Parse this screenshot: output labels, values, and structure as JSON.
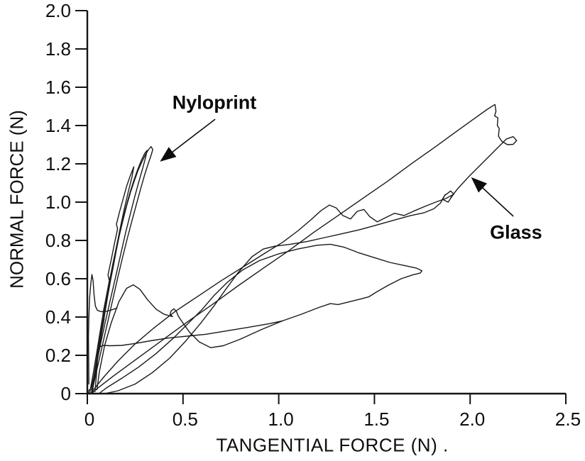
{
  "figure": {
    "background": "#ffffff",
    "ink_color": "#141414"
  },
  "chart_data": {
    "type": "line",
    "title": "",
    "xlabel": "TANGENTIAL FORCE (N) .",
    "ylabel": "NORMAL FORCE (N)",
    "xlim": [
      0,
      2.5
    ],
    "ylim": [
      0,
      2.0
    ],
    "grid": false,
    "legend_position": "none (arrow annotations instead)",
    "line_color": "#1a1a1a",
    "x_tick_values": [
      0,
      0.5,
      1.0,
      1.5,
      2.0,
      2.5
    ],
    "x_tick_labels": [
      "0",
      "0.5",
      "1.0",
      "1.5",
      "2.0",
      "2.5"
    ],
    "y_tick_values": [
      0,
      0.2,
      0.4,
      0.6,
      0.8,
      1.0,
      1.2,
      1.4,
      1.6,
      1.8,
      2.0
    ],
    "y_tick_labels": [
      "0",
      "0.2",
      "0.4",
      "0.6",
      "0.8",
      "1.0",
      "1.2",
      "1.4",
      "1.6",
      "1.8",
      "2.0"
    ],
    "annotations": [
      {
        "text": "Nyloprint",
        "label_xy": [
          0.664,
          1.519
        ],
        "arrow_from": [
          0.668,
          1.433
        ],
        "arrow_to": [
          0.389,
          1.219
        ]
      },
      {
        "text": "Glass",
        "label_xy": [
          2.24,
          0.84
        ],
        "arrow_from": [
          2.226,
          0.926
        ],
        "arrow_to": [
          2.014,
          1.122
        ]
      }
    ],
    "series": [
      {
        "name": "nyloprint-trace-1",
        "surface": "Nyloprint",
        "points": [
          [
            0.02,
            0.0
          ],
          [
            0.035,
            0.07
          ],
          [
            0.05,
            0.17
          ],
          [
            0.065,
            0.26
          ],
          [
            0.08,
            0.35
          ],
          [
            0.095,
            0.44
          ],
          [
            0.105,
            0.5
          ],
          [
            0.12,
            0.585
          ],
          [
            0.135,
            0.66
          ],
          [
            0.15,
            0.74
          ],
          [
            0.168,
            0.83
          ],
          [
            0.185,
            0.9
          ],
          [
            0.205,
            0.98
          ],
          [
            0.225,
            1.05
          ],
          [
            0.245,
            1.11
          ],
          [
            0.265,
            1.165
          ],
          [
            0.285,
            1.21
          ],
          [
            0.305,
            1.25
          ],
          [
            0.32,
            1.275
          ],
          [
            0.333,
            1.29
          ],
          [
            0.342,
            1.275
          ],
          [
            0.335,
            1.25
          ],
          [
            0.318,
            1.2
          ],
          [
            0.3,
            1.145
          ],
          [
            0.28,
            1.075
          ],
          [
            0.258,
            0.995
          ],
          [
            0.235,
            0.91
          ],
          [
            0.21,
            0.815
          ],
          [
            0.185,
            0.715
          ],
          [
            0.16,
            0.61
          ],
          [
            0.135,
            0.5
          ],
          [
            0.11,
            0.39
          ],
          [
            0.085,
            0.28
          ],
          [
            0.06,
            0.17
          ],
          [
            0.04,
            0.08
          ],
          [
            0.025,
            0.015
          ]
        ]
      },
      {
        "name": "nyloprint-trace-2",
        "surface": "Nyloprint",
        "points": [
          [
            0.012,
            0.0
          ],
          [
            0.03,
            0.1
          ],
          [
            0.05,
            0.22
          ],
          [
            0.068,
            0.33
          ],
          [
            0.085,
            0.43
          ],
          [
            0.1,
            0.51
          ],
          [
            0.118,
            0.6
          ],
          [
            0.138,
            0.7
          ],
          [
            0.158,
            0.79
          ],
          [
            0.178,
            0.88
          ],
          [
            0.198,
            0.96
          ],
          [
            0.22,
            1.04
          ],
          [
            0.242,
            1.11
          ],
          [
            0.263,
            1.17
          ],
          [
            0.283,
            1.22
          ],
          [
            0.3,
            1.255
          ],
          [
            0.312,
            1.27
          ],
          [
            0.305,
            1.235
          ],
          [
            0.29,
            1.18
          ],
          [
            0.27,
            1.11
          ],
          [
            0.248,
            1.03
          ],
          [
            0.225,
            0.94
          ],
          [
            0.2,
            0.84
          ],
          [
            0.175,
            0.73
          ],
          [
            0.148,
            0.61
          ],
          [
            0.12,
            0.49
          ],
          [
            0.093,
            0.37
          ],
          [
            0.067,
            0.25
          ],
          [
            0.043,
            0.13
          ],
          [
            0.022,
            0.03
          ]
        ]
      },
      {
        "name": "nyloprint-trace-3",
        "surface": "Nyloprint",
        "points": [
          [
            0.025,
            0.005
          ],
          [
            0.045,
            0.12
          ],
          [
            0.062,
            0.235
          ],
          [
            0.072,
            0.3
          ],
          [
            0.088,
            0.39
          ],
          [
            0.082,
            0.42
          ],
          [
            0.098,
            0.5
          ],
          [
            0.115,
            0.59
          ],
          [
            0.108,
            0.62
          ],
          [
            0.125,
            0.7
          ],
          [
            0.142,
            0.785
          ],
          [
            0.158,
            0.86
          ],
          [
            0.152,
            0.885
          ],
          [
            0.17,
            0.955
          ],
          [
            0.188,
            1.02
          ],
          [
            0.206,
            1.085
          ],
          [
            0.225,
            1.14
          ],
          [
            0.243,
            1.185
          ],
          [
            0.233,
            1.13
          ],
          [
            0.213,
            1.05
          ],
          [
            0.192,
            0.96
          ],
          [
            0.172,
            0.865
          ],
          [
            0.15,
            0.755
          ],
          [
            0.128,
            0.64
          ],
          [
            0.106,
            0.52
          ],
          [
            0.085,
            0.4
          ],
          [
            0.065,
            0.285
          ],
          [
            0.047,
            0.17
          ],
          [
            0.03,
            0.06
          ]
        ]
      },
      {
        "name": "glass-outer-loop",
        "surface": "Glass",
        "points": [
          [
            0.03,
            0.01
          ],
          [
            0.14,
            0.095
          ],
          [
            0.27,
            0.19
          ],
          [
            0.4,
            0.285
          ],
          [
            0.53,
            0.38
          ],
          [
            0.66,
            0.47
          ],
          [
            0.79,
            0.565
          ],
          [
            0.92,
            0.655
          ],
          [
            1.05,
            0.745
          ],
          [
            1.18,
            0.84
          ],
          [
            1.31,
            0.93
          ],
          [
            1.44,
            1.02
          ],
          [
            1.57,
            1.11
          ],
          [
            1.7,
            1.205
          ],
          [
            1.82,
            1.29
          ],
          [
            1.93,
            1.37
          ],
          [
            2.02,
            1.435
          ],
          [
            2.09,
            1.485
          ],
          [
            2.13,
            1.51
          ],
          [
            2.135,
            1.475
          ],
          [
            2.128,
            1.45
          ],
          [
            2.145,
            1.44
          ],
          [
            2.142,
            1.4
          ],
          [
            2.152,
            1.385
          ],
          [
            2.148,
            1.345
          ],
          [
            2.165,
            1.318
          ],
          [
            2.195,
            1.3
          ],
          [
            2.225,
            1.302
          ],
          [
            2.243,
            1.322
          ],
          [
            2.225,
            1.342
          ],
          [
            2.19,
            1.33
          ],
          [
            2.13,
            1.27
          ],
          [
            2.06,
            1.2
          ],
          [
            1.99,
            1.13
          ],
          [
            1.935,
            1.07
          ],
          [
            1.9,
            1.025
          ],
          [
            1.915,
            1.045
          ],
          [
            1.885,
            1.0
          ],
          [
            1.855,
            1.015
          ],
          [
            1.87,
            1.04
          ],
          [
            1.845,
            0.995
          ],
          [
            1.81,
            0.965
          ],
          [
            1.76,
            0.945
          ],
          [
            1.69,
            0.93
          ],
          [
            1.6,
            0.905
          ],
          [
            1.51,
            0.88
          ],
          [
            1.42,
            0.855
          ],
          [
            1.33,
            0.835
          ],
          [
            1.24,
            0.815
          ],
          [
            1.15,
            0.795
          ],
          [
            1.06,
            0.78
          ],
          [
            0.98,
            0.77
          ],
          [
            0.92,
            0.755
          ],
          [
            0.86,
            0.715
          ],
          [
            0.79,
            0.635
          ],
          [
            0.72,
            0.54
          ],
          [
            0.66,
            0.455
          ],
          [
            0.59,
            0.365
          ],
          [
            0.51,
            0.27
          ],
          [
            0.43,
            0.185
          ],
          [
            0.34,
            0.11
          ],
          [
            0.25,
            0.05
          ],
          [
            0.16,
            0.015
          ],
          [
            0.09,
            0.0
          ]
        ]
      },
      {
        "name": "glass-wiggly-trace",
        "surface": "Glass",
        "points": [
          [
            0.02,
            0.005
          ],
          [
            0.08,
            0.08
          ],
          [
            0.16,
            0.17
          ],
          [
            0.25,
            0.26
          ],
          [
            0.35,
            0.345
          ],
          [
            0.46,
            0.43
          ],
          [
            0.58,
            0.51
          ],
          [
            0.7,
            0.59
          ],
          [
            0.82,
            0.665
          ],
          [
            0.93,
            0.735
          ],
          [
            1.02,
            0.79
          ],
          [
            1.1,
            0.85
          ],
          [
            1.165,
            0.905
          ],
          [
            1.22,
            0.955
          ],
          [
            1.265,
            0.985
          ],
          [
            1.3,
            0.97
          ],
          [
            1.335,
            0.93
          ],
          [
            1.375,
            0.912
          ],
          [
            1.41,
            0.952
          ],
          [
            1.445,
            0.962
          ],
          [
            1.475,
            0.925
          ],
          [
            1.515,
            0.897
          ],
          [
            1.56,
            0.92
          ],
          [
            1.605,
            0.942
          ],
          [
            1.655,
            0.93
          ],
          [
            1.705,
            0.953
          ],
          [
            1.765,
            0.978
          ],
          [
            1.825,
            1.002
          ],
          [
            1.875,
            1.02
          ],
          [
            1.915,
            1.042
          ],
          [
            1.898,
            1.058
          ],
          [
            1.872,
            1.038
          ]
        ]
      },
      {
        "name": "glass-lower-loop",
        "surface": "Glass",
        "points": [
          [
            0.06,
            0.0
          ],
          [
            0.1,
            0.03
          ],
          [
            0.18,
            0.08
          ],
          [
            0.27,
            0.14
          ],
          [
            0.36,
            0.21
          ],
          [
            0.45,
            0.29
          ],
          [
            0.53,
            0.37
          ],
          [
            0.6,
            0.44
          ],
          [
            0.66,
            0.51
          ],
          [
            0.73,
            0.58
          ],
          [
            0.81,
            0.645
          ],
          [
            0.9,
            0.695
          ],
          [
            1.0,
            0.73
          ],
          [
            1.1,
            0.755
          ],
          [
            1.2,
            0.775
          ],
          [
            1.27,
            0.78
          ],
          [
            1.34,
            0.765
          ],
          [
            1.42,
            0.735
          ],
          [
            1.5,
            0.71
          ],
          [
            1.58,
            0.685
          ],
          [
            1.66,
            0.668
          ],
          [
            1.72,
            0.655
          ],
          [
            1.748,
            0.642
          ],
          [
            1.74,
            0.63
          ],
          [
            1.7,
            0.62
          ],
          [
            1.64,
            0.6
          ],
          [
            1.57,
            0.565
          ],
          [
            1.51,
            0.53
          ],
          [
            1.47,
            0.505
          ],
          [
            1.43,
            0.495
          ],
          [
            1.37,
            0.48
          ],
          [
            1.31,
            0.465
          ],
          [
            1.27,
            0.47
          ],
          [
            1.21,
            0.45
          ],
          [
            1.12,
            0.415
          ],
          [
            1.02,
            0.38
          ],
          [
            0.91,
            0.335
          ],
          [
            0.8,
            0.285
          ],
          [
            0.71,
            0.25
          ],
          [
            0.645,
            0.24
          ],
          [
            0.585,
            0.27
          ],
          [
            0.535,
            0.32
          ],
          [
            0.495,
            0.375
          ],
          [
            0.475,
            0.405
          ],
          [
            0.465,
            0.43
          ],
          [
            0.452,
            0.443
          ],
          [
            0.438,
            0.432
          ],
          [
            0.432,
            0.415
          ],
          [
            0.445,
            0.402
          ],
          [
            0.4,
            0.415
          ],
          [
            0.36,
            0.44
          ],
          [
            0.315,
            0.49
          ],
          [
            0.275,
            0.545
          ],
          [
            0.24,
            0.568
          ],
          [
            0.205,
            0.55
          ],
          [
            0.165,
            0.48
          ],
          [
            0.125,
            0.37
          ],
          [
            0.09,
            0.25
          ],
          [
            0.063,
            0.115
          ],
          [
            0.05,
            0.02
          ]
        ]
      },
      {
        "name": "glass-low-shallow-trace",
        "surface": "Glass",
        "points": [
          [
            0.04,
            0.01
          ],
          [
            0.048,
            0.1
          ],
          [
            0.053,
            0.18
          ],
          [
            0.06,
            0.24
          ],
          [
            0.08,
            0.252
          ],
          [
            0.12,
            0.25
          ],
          [
            0.18,
            0.252
          ],
          [
            0.25,
            0.262
          ],
          [
            0.33,
            0.276
          ],
          [
            0.42,
            0.29
          ],
          [
            0.52,
            0.3
          ],
          [
            0.62,
            0.31
          ],
          [
            0.73,
            0.328
          ],
          [
            0.84,
            0.346
          ],
          [
            0.95,
            0.365
          ],
          [
            1.02,
            0.38
          ]
        ]
      },
      {
        "name": "glass-left-spike",
        "surface": "Glass",
        "points": [
          [
            0.008,
            0.05
          ],
          [
            0.007,
            0.18
          ],
          [
            0.006,
            0.3
          ],
          [
            0.008,
            0.4
          ],
          [
            0.012,
            0.5
          ],
          [
            0.018,
            0.575
          ],
          [
            0.024,
            0.622
          ],
          [
            0.03,
            0.59
          ],
          [
            0.035,
            0.52
          ],
          [
            0.042,
            0.458
          ],
          [
            0.052,
            0.436
          ],
          [
            0.07,
            0.428
          ],
          [
            0.1,
            0.43
          ],
          [
            0.13,
            0.438
          ],
          [
            0.155,
            0.447
          ]
        ]
      },
      {
        "name": "origin-blob",
        "surface": "Glass",
        "points": [
          [
            0.004,
            0.006
          ],
          [
            0.018,
            0.0
          ],
          [
            0.032,
            0.008
          ],
          [
            0.026,
            0.024
          ],
          [
            0.01,
            0.02
          ],
          [
            0.004,
            0.006
          ]
        ]
      }
    ]
  }
}
